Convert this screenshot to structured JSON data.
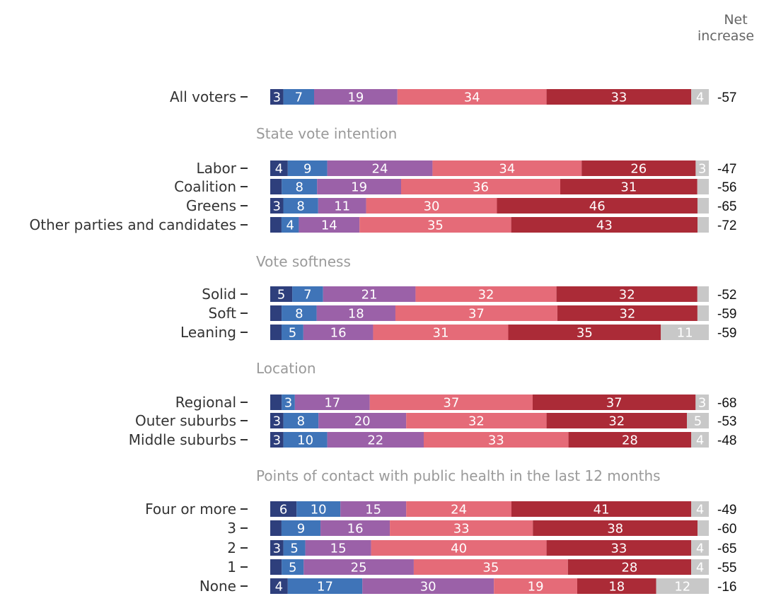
{
  "chart_data": {
    "type": "bar",
    "orientation": "horizontal",
    "stacked": "100%",
    "net_header": [
      "Net",
      "increase"
    ],
    "segment_colors": [
      "#2e3f7c",
      "#3f74b8",
      "#9b61a8",
      "#e56b78",
      "#ab2b37",
      "#c8c8c8"
    ],
    "groups": [
      {
        "header": "",
        "rows": [
          {
            "label": "All voters",
            "values": [
              3,
              7,
              19,
              34,
              33,
              4
            ],
            "net": "-57"
          }
        ]
      },
      {
        "header": "State vote intention",
        "rows": [
          {
            "label": "Labor",
            "values": [
              4,
              9,
              24,
              34,
              26,
              3
            ],
            "net": "-47"
          },
          {
            "label": "Coalition",
            "values": [
              null,
              8,
              19,
              36,
              31,
              null
            ],
            "net": "-56"
          },
          {
            "label": "Greens",
            "values": [
              3,
              8,
              11,
              30,
              46,
              null
            ],
            "net": "-65"
          },
          {
            "label": "Other parties and candidates",
            "values": [
              null,
              4,
              14,
              35,
              43,
              null
            ],
            "net": "-72"
          }
        ]
      },
      {
        "header": "Vote softness",
        "rows": [
          {
            "label": "Solid",
            "values": [
              5,
              7,
              21,
              32,
              32,
              null
            ],
            "net": "-52"
          },
          {
            "label": "Soft",
            "values": [
              null,
              8,
              18,
              37,
              32,
              null
            ],
            "net": "-59"
          },
          {
            "label": "Leaning",
            "values": [
              null,
              5,
              16,
              31,
              35,
              11
            ],
            "net": "-59"
          }
        ]
      },
      {
        "header": "Location",
        "rows": [
          {
            "label": "Regional",
            "values": [
              null,
              3,
              17,
              37,
              37,
              3
            ],
            "net": "-68"
          },
          {
            "label": "Outer suburbs",
            "values": [
              3,
              8,
              20,
              32,
              32,
              5
            ],
            "net": "-53"
          },
          {
            "label": "Middle suburbs",
            "values": [
              3,
              10,
              22,
              33,
              28,
              4
            ],
            "net": "-48"
          }
        ]
      },
      {
        "header": "Points of contact with public health in the last 12 months",
        "rows": [
          {
            "label": "Four or more",
            "values": [
              6,
              10,
              15,
              24,
              41,
              4
            ],
            "net": "-49"
          },
          {
            "label": "3",
            "values": [
              null,
              9,
              16,
              33,
              38,
              null
            ],
            "net": "-60"
          },
          {
            "label": "2",
            "values": [
              3,
              5,
              15,
              40,
              33,
              4
            ],
            "net": "-65"
          },
          {
            "label": "1",
            "values": [
              null,
              5,
              25,
              35,
              28,
              4
            ],
            "net": "-55"
          },
          {
            "label": "None",
            "values": [
              4,
              17,
              30,
              19,
              18,
              12
            ],
            "net": "-16"
          }
        ]
      }
    ]
  }
}
